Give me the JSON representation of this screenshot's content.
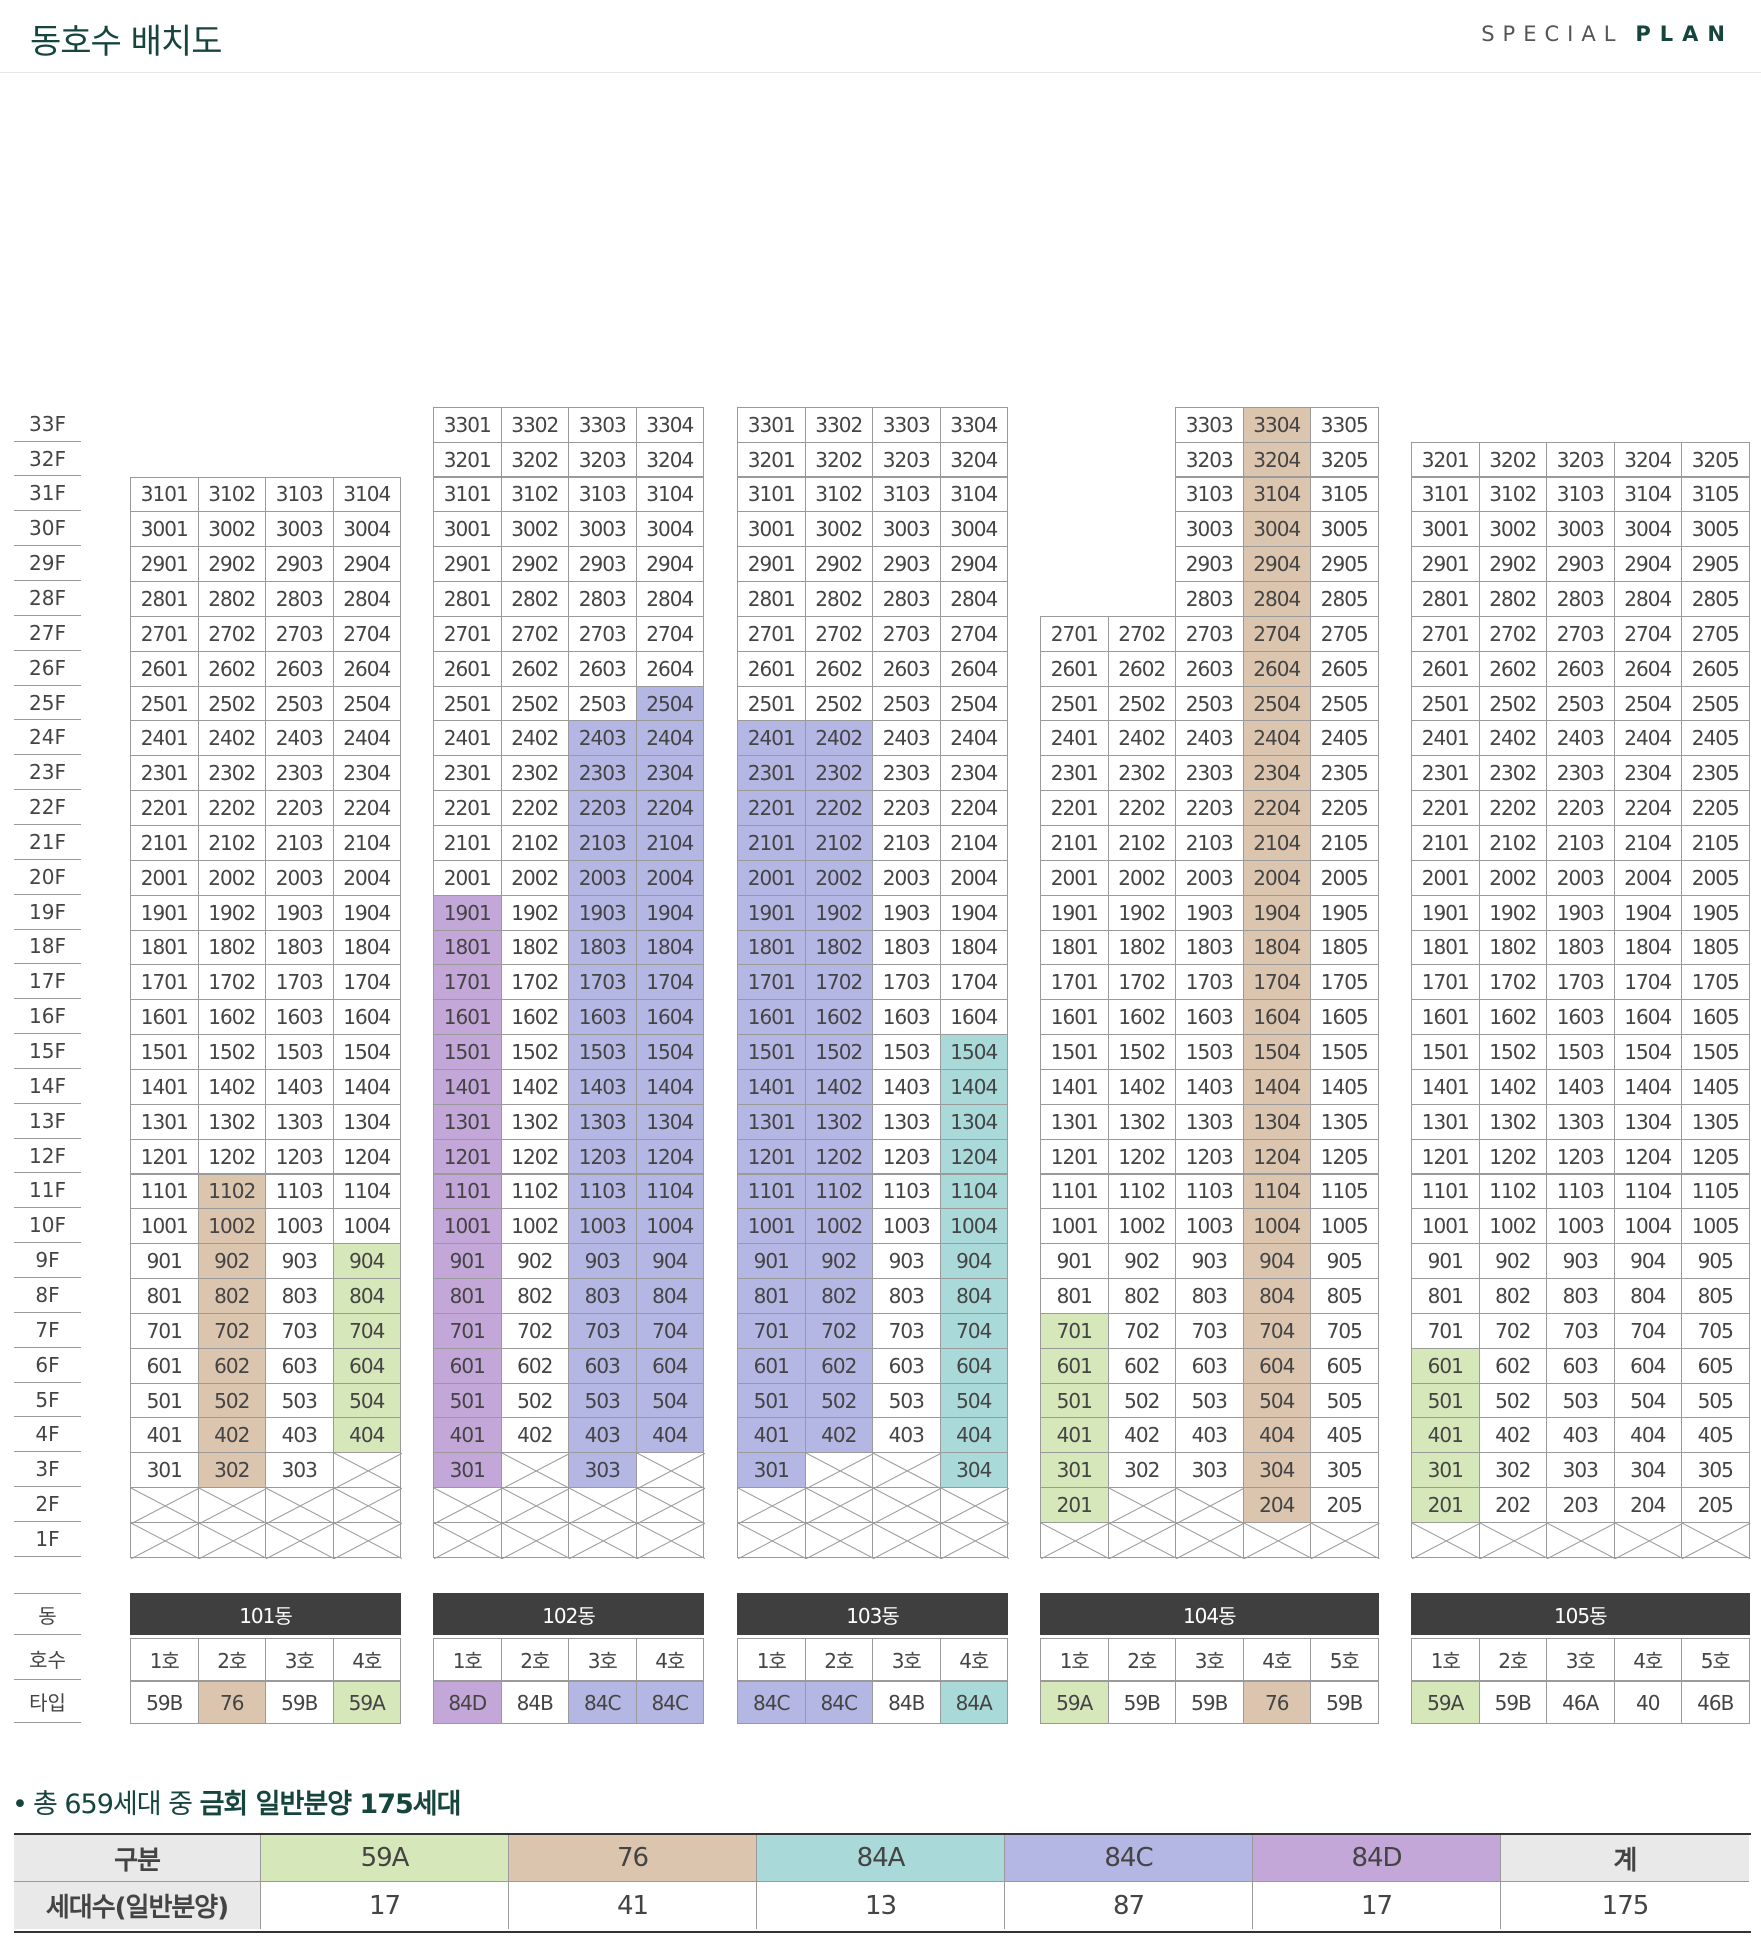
{
  "header": {
    "title": "동호수 배치도",
    "brand_special": "SPECIAL",
    "brand_plan": "PLAN"
  },
  "labels": {
    "dong": "동",
    "hosu": "호수",
    "type": "타입"
  },
  "colors": {
    "59A": "#d6e8b9",
    "76": "#dbc5ae",
    "84A": "#a9dad9",
    "84C": "#b4b6e3",
    "84D": "#c3a7d8",
    "grid_line": "#9a9a9a",
    "header_bg": "#3f3f3f",
    "title_green": "#16453e"
  },
  "floors": [
    "1F",
    "2F",
    "3F",
    "4F",
    "5F",
    "6F",
    "7F",
    "8F",
    "9F",
    "10F",
    "11F",
    "12F",
    "13F",
    "14F",
    "15F",
    "16F",
    "17F",
    "18F",
    "19F",
    "20F",
    "21F",
    "22F",
    "23F",
    "24F",
    "25F",
    "26F",
    "27F",
    "28F",
    "29F",
    "30F",
    "31F",
    "32F",
    "33F"
  ],
  "buildings": [
    {
      "name": "101동",
      "units": [
        "1호",
        "2호",
        "3호",
        "4호"
      ],
      "types": [
        "59B",
        "76",
        "59B",
        "59A"
      ],
      "columns": [
        {
          "top": 31,
          "start": 4,
          "extra_start": {
            "3": "302"
          },
          "color_ranges": []
        },
        {
          "top": 31,
          "start": 3,
          "color_ranges": [
            [
              3,
              11,
              "76"
            ]
          ]
        },
        {
          "top": 31,
          "start": 3,
          "color_ranges": []
        },
        {
          "top": 31,
          "start": 4,
          "color_ranges": [
            [
              4,
              9,
              "59A"
            ]
          ]
        }
      ]
    },
    {
      "name": "102동",
      "units": [
        "1호",
        "2호",
        "3호",
        "4호"
      ],
      "types": [
        "84D",
        "84B",
        "84C",
        "84C"
      ],
      "columns": [
        {
          "top": 33,
          "start": 3,
          "color_ranges": [
            [
              3,
              19,
              "84D"
            ]
          ]
        },
        {
          "top": 33,
          "start": 4,
          "color_ranges": []
        },
        {
          "top": 33,
          "start": 3,
          "color_ranges": [
            [
              3,
              24,
              "84C"
            ]
          ]
        },
        {
          "top": 33,
          "start": 4,
          "color_ranges": [
            [
              4,
              25,
              "84C"
            ]
          ]
        }
      ]
    },
    {
      "name": "103동",
      "units": [
        "1호",
        "2호",
        "3호",
        "4호"
      ],
      "types": [
        "84C",
        "84C",
        "84B",
        "84A"
      ],
      "columns": [
        {
          "top": 33,
          "start": 3,
          "color_ranges": [
            [
              3,
              24,
              "84C"
            ]
          ]
        },
        {
          "top": 33,
          "start": 4,
          "color_ranges": [
            [
              4,
              24,
              "84C"
            ]
          ]
        },
        {
          "top": 33,
          "start": 4,
          "color_ranges": []
        },
        {
          "top": 33,
          "start": 3,
          "color_ranges": [
            [
              3,
              15,
              "84A"
            ]
          ]
        }
      ]
    },
    {
      "name": "104동",
      "units": [
        "1호",
        "2호",
        "3호",
        "4호",
        "5호"
      ],
      "types": [
        "59A",
        "59B",
        "59B",
        "76",
        "59B"
      ],
      "columns": [
        {
          "top": 27,
          "start": 2,
          "color_ranges": [
            [
              2,
              7,
              "59A"
            ]
          ]
        },
        {
          "top": 27,
          "start": 3,
          "color_ranges": []
        },
        {
          "top": 33,
          "start": 3,
          "color_ranges": []
        },
        {
          "top": 33,
          "start": 2,
          "color_ranges": [
            [
              2,
              33,
              "76"
            ]
          ]
        },
        {
          "top": 33,
          "start": 2,
          "color_ranges": []
        }
      ]
    },
    {
      "name": "105동",
      "units": [
        "1호",
        "2호",
        "3호",
        "4호",
        "5호"
      ],
      "types": [
        "59A",
        "59B",
        "46A",
        "40",
        "46B"
      ],
      "columns": [
        {
          "top": 32,
          "start": 2,
          "color_ranges": [
            [
              2,
              6,
              "59A"
            ]
          ]
        },
        {
          "top": 32,
          "start": 2,
          "color_ranges": []
        },
        {
          "top": 32,
          "start": 2,
          "color_ranges": []
        },
        {
          "top": 32,
          "start": 2,
          "color_ranges": []
        },
        {
          "top": 32,
          "start": 2,
          "color_ranges": []
        }
      ]
    }
  ],
  "summary": {
    "bullet": "•",
    "prefix": "총 659세대 중 ",
    "emphasis": "금회 일반분양 175세대",
    "table": {
      "header_label": "구분",
      "row_label": "세대수(일반분양)",
      "columns": [
        {
          "type": "59A",
          "count": "17"
        },
        {
          "type": "76",
          "count": "41"
        },
        {
          "type": "84A",
          "count": "13"
        },
        {
          "type": "84C",
          "count": "87"
        },
        {
          "type": "84D",
          "count": "17"
        },
        {
          "type": "계",
          "count": "175"
        }
      ]
    }
  }
}
